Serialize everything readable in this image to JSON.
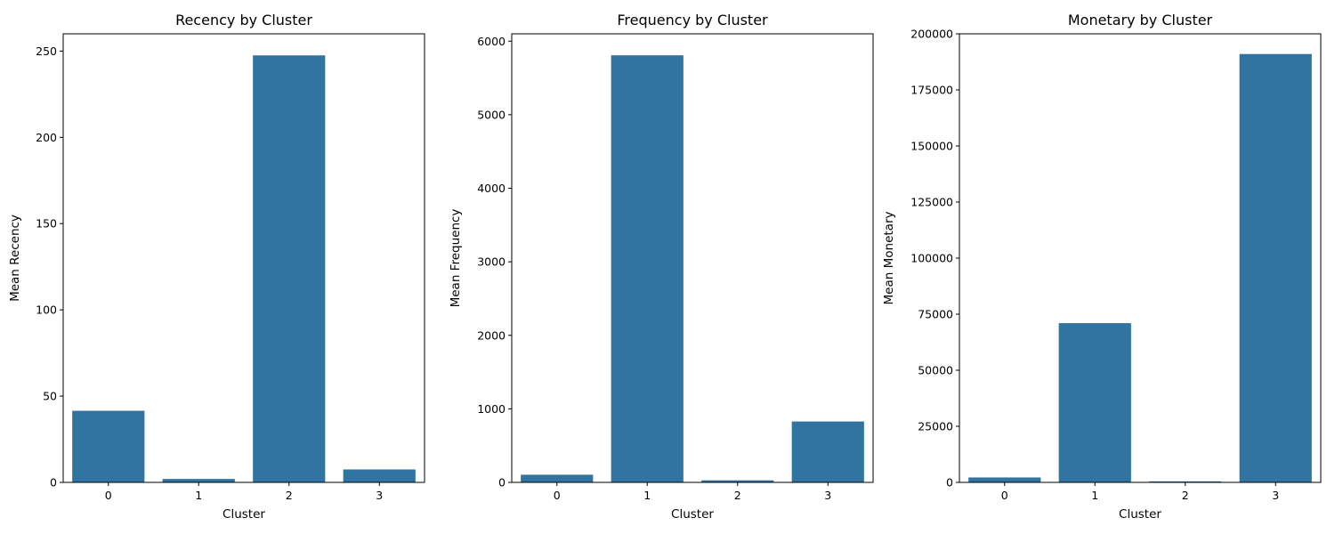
{
  "chart_data": [
    {
      "type": "bar",
      "title": "Recency by Cluster",
      "xlabel": "Cluster",
      "ylabel": "Mean Recency",
      "categories": [
        "0",
        "1",
        "2",
        "3"
      ],
      "values": [
        41.5,
        2,
        247.5,
        7.5
      ],
      "ylim": [
        0,
        260
      ],
      "yticks": [
        0,
        50,
        100,
        150,
        200,
        250
      ],
      "color": "#3274a1",
      "grid": false,
      "legend": "none"
    },
    {
      "type": "bar",
      "title": "Frequency by Cluster",
      "xlabel": "Cluster",
      "ylabel": "Mean Frequency",
      "categories": [
        "0",
        "1",
        "2",
        "3"
      ],
      "values": [
        104,
        5808,
        28,
        828
      ],
      "ylim": [
        0,
        6100
      ],
      "yticks": [
        0,
        1000,
        2000,
        3000,
        4000,
        5000,
        6000
      ],
      "color": "#3274a1",
      "grid": false,
      "legend": "none"
    },
    {
      "type": "bar",
      "title": "Monetary by Cluster",
      "xlabel": "Cluster",
      "ylabel": "Mean Monetary",
      "categories": [
        "0",
        "1",
        "2",
        "3"
      ],
      "values": [
        2200,
        71000,
        450,
        191000
      ],
      "ylim": [
        0,
        200000
      ],
      "yticks": [
        0,
        25000,
        50000,
        75000,
        100000,
        125000,
        150000,
        175000,
        200000
      ],
      "color": "#3274a1",
      "grid": false,
      "legend": "none"
    }
  ]
}
